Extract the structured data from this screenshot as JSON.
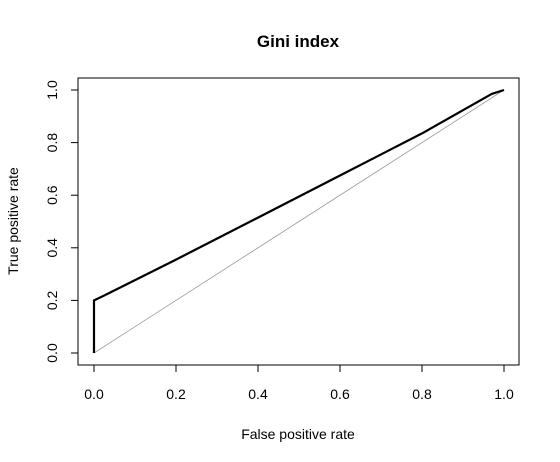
{
  "chart_data": {
    "type": "line",
    "title": "Gini index",
    "xlabel": "False positive rate",
    "ylabel": "True positive rate",
    "xlim": [
      0,
      1
    ],
    "ylim": [
      0,
      1
    ],
    "x_ticks": [
      "0.0",
      "0.2",
      "0.4",
      "0.6",
      "0.8",
      "1.0"
    ],
    "y_ticks": [
      "0.0",
      "0.2",
      "0.4",
      "0.6",
      "0.8",
      "1.0"
    ],
    "grid": false,
    "series": [
      {
        "style": "thick black line",
        "color": "#000000",
        "x": [
          0.0,
          0.0,
          0.02,
          0.2,
          0.4,
          0.6,
          0.8,
          0.97,
          1.0
        ],
        "y": [
          0.0,
          0.2,
          0.215,
          0.355,
          0.515,
          0.675,
          0.835,
          0.985,
          1.0
        ]
      },
      {
        "style": "thin grey reference diagonal",
        "color": "#9a9a9a",
        "x": [
          0.0,
          1.0
        ],
        "y": [
          0.0,
          1.0
        ]
      }
    ]
  }
}
